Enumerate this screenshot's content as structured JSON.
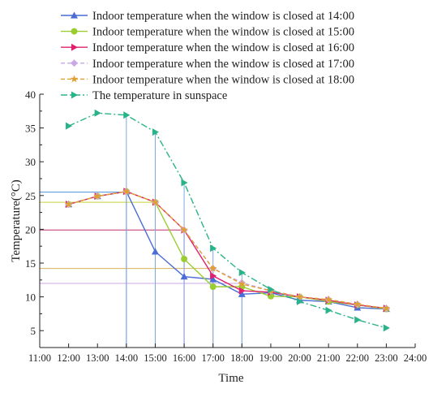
{
  "chart_data": {
    "type": "line",
    "title": "",
    "xlabel": "Time",
    "ylabel": "Temperature(°C)",
    "x_ticks": [
      "11:00",
      "12:00",
      "13:00",
      "14:00",
      "15:00",
      "16:00",
      "17:00",
      "18:00",
      "19:00",
      "20:00",
      "21:00",
      "22:00",
      "23:00",
      "24:00"
    ],
    "y_ticks": [
      "5",
      "10",
      "15",
      "20",
      "25",
      "30",
      "35",
      "40"
    ],
    "xlim": [
      11,
      24
    ],
    "ylim": [
      2.5,
      40
    ],
    "legend_position": "top",
    "series": [
      {
        "name": "Indoor temperature when the window is closed at 14:00",
        "color": "#4a6cd4",
        "marker": "triangle-up",
        "dash": "solid",
        "x": [
          12,
          13,
          14,
          15,
          16,
          17,
          18,
          19,
          20,
          21,
          22,
          23
        ],
        "y": [
          23.7,
          24.9,
          25.6,
          16.7,
          13.0,
          12.6,
          10.4,
          10.6,
          9.5,
          9.3,
          8.4,
          8.2
        ]
      },
      {
        "name": "Indoor temperature when the window is closed at 15:00",
        "color": "#9acd32",
        "marker": "circle",
        "dash": "solid",
        "x": [
          12,
          13,
          14,
          15,
          16,
          17,
          18,
          19,
          20,
          21,
          22,
          23
        ],
        "y": [
          23.7,
          24.9,
          25.6,
          24.0,
          15.6,
          11.5,
          11.5,
          10.1,
          10.0,
          9.3,
          8.8,
          8.2
        ]
      },
      {
        "name": "Indoor temperature when the window is closed at 16:00",
        "color": "#e0206e",
        "marker": "triangle-right",
        "dash": "solid",
        "x": [
          12,
          13,
          14,
          15,
          16,
          17,
          18,
          19,
          20,
          21,
          22,
          23
        ],
        "y": [
          23.7,
          24.9,
          25.6,
          24.0,
          19.9,
          13.1,
          10.9,
          10.7,
          10.0,
          9.5,
          8.8,
          8.3
        ]
      },
      {
        "name": "Indoor temperature when the window is closed at 17:00",
        "color": "#c9a8e8",
        "marker": "diamond",
        "dash": "dash",
        "x": [
          12,
          13,
          14,
          15,
          16,
          17,
          18,
          19,
          20,
          21,
          22,
          23
        ],
        "y": [
          23.7,
          24.9,
          25.6,
          24.0,
          19.9,
          14.2,
          12.1,
          10.9,
          10.0,
          9.6,
          8.9,
          8.3
        ]
      },
      {
        "name": "Indoor temperature when the window is closed at 18:00",
        "color": "#e0a030",
        "marker": "star",
        "dash": "dash",
        "x": [
          12,
          13,
          14,
          15,
          16,
          17,
          18,
          19,
          20,
          21,
          22,
          23
        ],
        "y": [
          23.7,
          24.9,
          25.6,
          24.0,
          19.9,
          14.2,
          11.9,
          10.9,
          10.0,
          9.6,
          8.9,
          8.3
        ]
      },
      {
        "name": "The temperature in sunspace",
        "color": "#2ab38a",
        "marker": "triangle-right",
        "dash": "dashdot",
        "x": [
          12,
          13,
          14,
          15,
          16,
          17,
          18,
          19,
          20,
          21,
          22,
          23
        ],
        "y": [
          35.3,
          37.2,
          36.9,
          34.4,
          26.9,
          17.2,
          13.6,
          11.1,
          9.3,
          8.0,
          6.6,
          5.4
        ]
      }
    ],
    "reference_lines": [
      {
        "x": 14,
        "y": 25.5,
        "color": "#4a90e2"
      },
      {
        "x": 15,
        "y": 24.0,
        "color": "#c8d23a"
      },
      {
        "x": 16,
        "y": 19.9,
        "color": "#c0306e"
      },
      {
        "x": 17,
        "y": 14.2,
        "color": "#d9b35a"
      },
      {
        "x": 18,
        "y": 12.0,
        "color": "#c9a8e8"
      }
    ],
    "sunspace_drop_lines": [
      {
        "x": 14,
        "y": 36.9
      },
      {
        "x": 15,
        "y": 34.4
      },
      {
        "x": 16,
        "y": 26.9
      },
      {
        "x": 17,
        "y": 17.2
      },
      {
        "x": 18,
        "y": 13.6
      }
    ]
  }
}
